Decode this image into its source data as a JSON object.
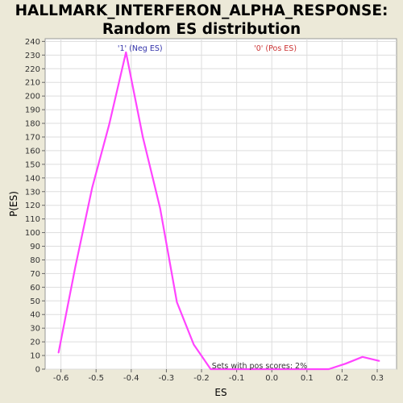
{
  "chart_data": {
    "type": "line",
    "title": "HALLMARK_INTERFERON_ALPHA_RESPONSE:",
    "subtitle": "Random ES distribution",
    "xlabel": "ES",
    "ylabel": "P(ES)",
    "xlim": [
      -0.645,
      0.355
    ],
    "ylim": [
      0,
      242
    ],
    "xticks": [
      "-0.6",
      "-0.5",
      "-0.4",
      "-0.3",
      "-0.2",
      "-0.1",
      "0.0",
      "0.1",
      "0.2",
      "0.3"
    ],
    "xtick_values": [
      -0.6,
      -0.5,
      -0.4,
      -0.3,
      -0.2,
      -0.1,
      0.0,
      0.1,
      0.2,
      0.3
    ],
    "yticks": [
      "0",
      "10",
      "20",
      "30",
      "40",
      "50",
      "60",
      "70",
      "80",
      "90",
      "100",
      "110",
      "120",
      "130",
      "140",
      "150",
      "160",
      "170",
      "180",
      "190",
      "200",
      "210",
      "220",
      "230",
      "240"
    ],
    "ytick_values": [
      0,
      10,
      20,
      30,
      40,
      50,
      60,
      70,
      80,
      90,
      100,
      110,
      120,
      130,
      140,
      150,
      160,
      170,
      180,
      190,
      200,
      210,
      220,
      230,
      240
    ],
    "grid": true,
    "series": [
      {
        "color": "#ff44ff",
        "x": [
          -0.607,
          -0.559,
          -0.511,
          -0.463,
          -0.415,
          -0.367,
          -0.318,
          -0.27,
          -0.222,
          -0.174,
          -0.126,
          -0.078,
          -0.03,
          0.018,
          0.066,
          0.114,
          0.162,
          0.21,
          0.258,
          0.306
        ],
        "y": [
          12,
          75,
          133,
          179,
          232,
          170,
          118,
          49,
          18,
          0,
          0,
          0,
          0,
          0,
          0,
          0,
          0,
          4,
          9,
          6
        ]
      }
    ],
    "legend": [
      {
        "label": "'1' (Neg ES)",
        "color": "#3333aa",
        "x_at": -0.375
      },
      {
        "label": "'0' (Pos ES)",
        "color": "#cc3333",
        "x_at": 0.01
      }
    ],
    "annotation": {
      "text": "Sets with pos scores: 2%"
    }
  }
}
